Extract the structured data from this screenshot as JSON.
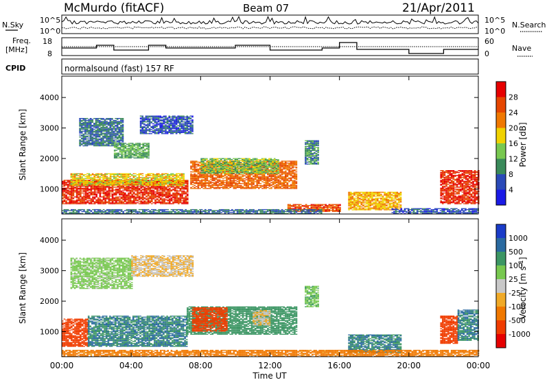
{
  "header": {
    "station": "McMurdo (fitACF)",
    "beam": "Beam 07",
    "date": "21/Apr/2011"
  },
  "top_panels": {
    "nsky_label": "N.Sky",
    "nsky_ticks": [
      "10^5",
      "10^0"
    ],
    "nsearch_label": "N.Search",
    "nsearch_ticks": [
      "10^5",
      "10^0"
    ],
    "freq_label_1": "Freq.",
    "freq_label_2": "[MHz]",
    "freq_ticks": [
      "18",
      "8"
    ],
    "nave_label": "Nave",
    "nave_ticks": [
      "60",
      "0"
    ],
    "cpid_label": "CPID",
    "cpid_value": "normalsound (fast) 157 RF"
  },
  "colors": {
    "power_scale": [
      "#1a1ae6",
      "#2a4ab8",
      "#3a8a5a",
      "#78c850",
      "#f0d200",
      "#f07800",
      "#e64600",
      "#e60000"
    ],
    "velocity_scale": [
      "#e60000",
      "#f03c00",
      "#f07800",
      "#f0aa28",
      "#c8c8c8",
      "#78c850",
      "#3c9664",
      "#2a6aa0",
      "#1a3cc8"
    ]
  },
  "chart_data": [
    {
      "type": "heatmap",
      "title": "",
      "xlabel": "Time UT",
      "ylabel": "Slant Range [km]",
      "x_ticks": [
        "00:00",
        "04:00",
        "08:00",
        "12:00",
        "16:00",
        "20:00",
        "00:00"
      ],
      "y_ticks": [
        "1000",
        "2000",
        "3000",
        "4000"
      ],
      "ylim": [
        180,
        4700
      ],
      "colorbar_label": "Power [dB]",
      "colorbar_ticks": [
        "4",
        "8",
        "12",
        "16",
        "20",
        "24",
        "28"
      ],
      "blobs": [
        {
          "t0": 0.0,
          "t1": 7.2,
          "r0": 500,
          "r1": 1300,
          "v": 28
        },
        {
          "t0": 0.5,
          "t1": 7.0,
          "r0": 1100,
          "r1": 1500,
          "v": 18
        },
        {
          "t0": 7.4,
          "t1": 13.5,
          "r0": 1000,
          "r1": 1900,
          "v": 24
        },
        {
          "t0": 8.0,
          "t1": 12.5,
          "r0": 1500,
          "r1": 2000,
          "v": 14
        },
        {
          "t0": 1.0,
          "t1": 3.5,
          "r0": 2400,
          "r1": 3300,
          "v": 8
        },
        {
          "t0": 4.5,
          "t1": 7.5,
          "r0": 2800,
          "r1": 3400,
          "v": 6
        },
        {
          "t0": 3.0,
          "t1": 5.0,
          "r0": 2000,
          "r1": 2500,
          "v": 12
        },
        {
          "t0": 14.0,
          "t1": 14.8,
          "r0": 1800,
          "r1": 2600,
          "v": 10
        },
        {
          "t0": 13.0,
          "t1": 16.0,
          "r0": 250,
          "r1": 500,
          "v": 26
        },
        {
          "t0": 16.5,
          "t1": 19.5,
          "r0": 300,
          "r1": 900,
          "v": 20
        },
        {
          "t0": 21.8,
          "t1": 24.0,
          "r0": 500,
          "r1": 1600,
          "v": 28
        },
        {
          "t0": 0.0,
          "t1": 15.0,
          "r0": 180,
          "r1": 330,
          "v": 8
        },
        {
          "t0": 19.0,
          "t1": 24.0,
          "r0": 180,
          "r1": 350,
          "v": 6
        }
      ]
    },
    {
      "type": "heatmap",
      "title": "",
      "xlabel": "Time UT",
      "ylabel": "Slant Range [km]",
      "x_ticks": [
        "00:00",
        "04:00",
        "08:00",
        "12:00",
        "16:00",
        "20:00",
        "00:00"
      ],
      "y_ticks": [
        "1000",
        "2000",
        "3000",
        "4000"
      ],
      "ylim": [
        180,
        4700
      ],
      "colorbar_label": "Velocity [m s",
      "colorbar_unit_exp": "-1",
      "colorbar_unit_close": "]",
      "colorbar_ticks": [
        "1000",
        "500",
        "100",
        "25",
        "-25",
        "-100",
        "-500",
        "-1000"
      ],
      "blobs": [
        {
          "t0": 0.0,
          "t1": 1.5,
          "r0": 500,
          "r1": 1400,
          "v": -300
        },
        {
          "t0": 1.5,
          "t1": 7.2,
          "r0": 500,
          "r1": 1500,
          "v": 300
        },
        {
          "t0": 7.2,
          "t1": 13.5,
          "r0": 900,
          "r1": 1800,
          "v": 200
        },
        {
          "t0": 7.5,
          "t1": 9.5,
          "r0": 1000,
          "r1": 1800,
          "v": -200
        },
        {
          "t0": 11.0,
          "t1": 12.0,
          "r0": 1200,
          "r1": 1700,
          "v": 0
        },
        {
          "t0": 0.5,
          "t1": 4.0,
          "r0": 2400,
          "r1": 3400,
          "v": 50
        },
        {
          "t0": 4.0,
          "t1": 7.5,
          "r0": 2800,
          "r1": 3500,
          "v": 0
        },
        {
          "t0": 14.0,
          "t1": 14.8,
          "r0": 1800,
          "r1": 2500,
          "v": 80
        },
        {
          "t0": 16.5,
          "t1": 19.5,
          "r0": 300,
          "r1": 900,
          "v": 300
        },
        {
          "t0": 21.8,
          "t1": 22.8,
          "r0": 600,
          "r1": 1500,
          "v": -300
        },
        {
          "t0": 22.8,
          "t1": 24.0,
          "r0": 700,
          "r1": 1700,
          "v": 300
        },
        {
          "t0": 0.0,
          "t1": 24.0,
          "r0": 180,
          "r1": 400,
          "v": -60
        }
      ]
    }
  ]
}
